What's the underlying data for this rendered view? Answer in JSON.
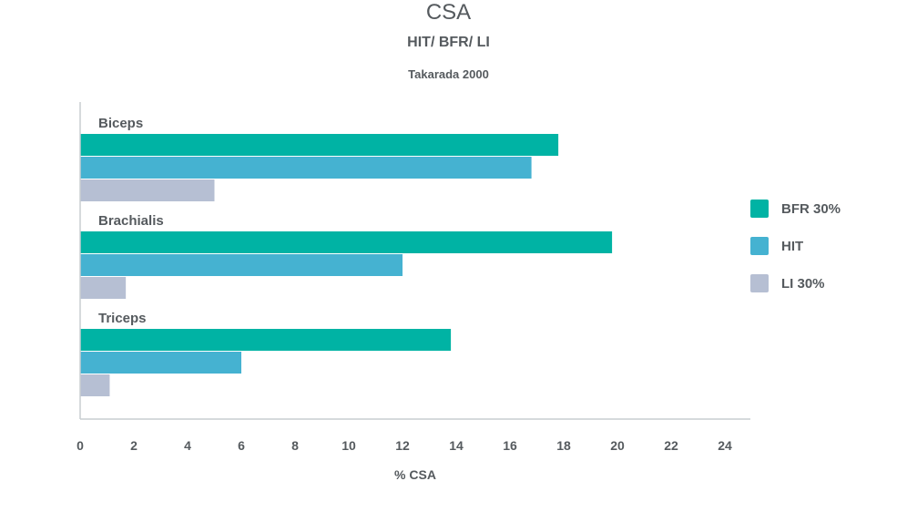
{
  "chart_data": {
    "type": "bar",
    "orientation": "horizontal",
    "title": "CSA",
    "subtitle": "HIT/ BFR/ LI",
    "source_note": "Takarada 2000",
    "xlabel": "% CSA",
    "ylabel": "",
    "categories": [
      "Biceps",
      "Brachialis",
      "Triceps"
    ],
    "series": [
      {
        "name": "BFR 30%",
        "color": "#00b3a4",
        "values": [
          17.8,
          19.8,
          13.8
        ]
      },
      {
        "name": "HIT",
        "color": "#45b2d1",
        "values": [
          16.8,
          12.0,
          6.0
        ]
      },
      {
        "name": "LI 30%",
        "color": "#b6bfd3",
        "values": [
          5.0,
          1.7,
          1.1
        ]
      }
    ],
    "xlim": [
      0,
      24
    ],
    "xticks": [
      "0",
      "2",
      "4",
      "6",
      "8",
      "10",
      "12",
      "14",
      "16",
      "18",
      "20",
      "22",
      "24"
    ],
    "grid": false,
    "legend_position": "right"
  }
}
